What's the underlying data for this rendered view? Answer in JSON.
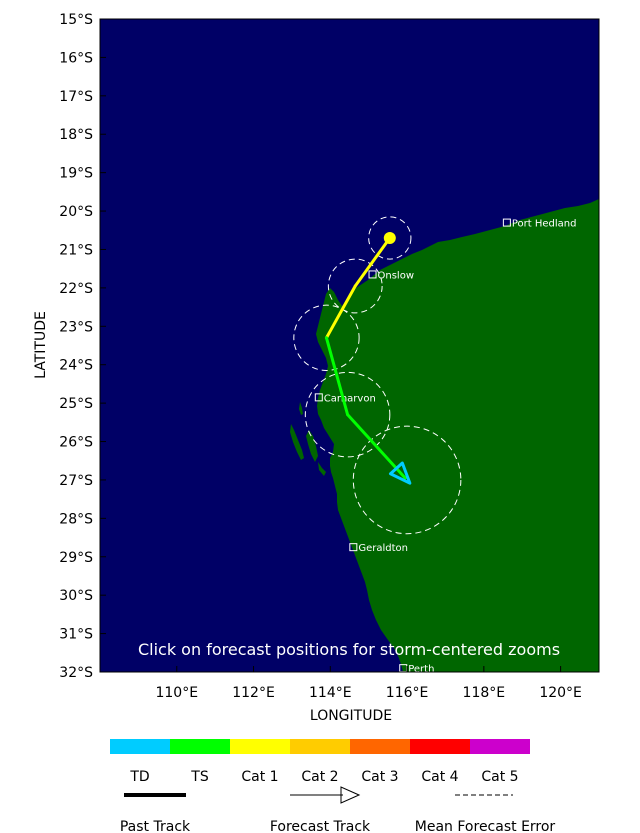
{
  "map": {
    "xlabel": "LONGITUDE",
    "ylabel": "LATITUDE",
    "lon_range": [
      108,
      121
    ],
    "lat_range": [
      -32,
      -15
    ],
    "lon_ticks": [
      {
        "value": 110,
        "label": "110°E"
      },
      {
        "value": 112,
        "label": "112°E"
      },
      {
        "value": 114,
        "label": "114°E"
      },
      {
        "value": 116,
        "label": "116°E"
      },
      {
        "value": 118,
        "label": "118°E"
      },
      {
        "value": 120,
        "label": "120°E"
      }
    ],
    "lat_ticks": [
      {
        "value": -15,
        "label": "15°S"
      },
      {
        "value": -16,
        "label": "16°S"
      },
      {
        "value": -17,
        "label": "17°S"
      },
      {
        "value": -18,
        "label": "18°S"
      },
      {
        "value": -19,
        "label": "19°S"
      },
      {
        "value": -20,
        "label": "20°S"
      },
      {
        "value": -21,
        "label": "21°S"
      },
      {
        "value": -22,
        "label": "22°S"
      },
      {
        "value": -23,
        "label": "23°S"
      },
      {
        "value": -24,
        "label": "24°S"
      },
      {
        "value": -25,
        "label": "25°S"
      },
      {
        "value": -26,
        "label": "26°S"
      },
      {
        "value": -27,
        "label": "27°S"
      },
      {
        "value": -28,
        "label": "28°S"
      },
      {
        "value": -29,
        "label": "29°S"
      },
      {
        "value": -30,
        "label": "30°S"
      },
      {
        "value": -31,
        "label": "31°S"
      },
      {
        "value": -32,
        "label": "32°S"
      }
    ],
    "ocean_color": "#000066",
    "land_color": "#006600",
    "notice": "Click on forecast positions for storm-centered zooms",
    "cities": [
      {
        "name": "Port Hedland",
        "lon": 118.6,
        "lat": -20.3
      },
      {
        "name": "Onslow",
        "lon": 115.1,
        "lat": -21.65
      },
      {
        "name": "Carnarvon",
        "lon": 113.7,
        "lat": -24.85
      },
      {
        "name": "Geraldton",
        "lon": 114.6,
        "lat": -28.75
      },
      {
        "name": "Perth",
        "lon": 115.9,
        "lat": -31.9
      }
    ]
  },
  "track": {
    "current_position": {
      "lon": 115.55,
      "lat": -20.7
    },
    "segments": [
      {
        "from": [
          115.55,
          -20.7
        ],
        "to": [
          114.65,
          -21.95
        ],
        "category": "Cat 1",
        "color": "#ffff00"
      },
      {
        "from": [
          114.65,
          -21.95
        ],
        "to": [
          113.9,
          -23.3
        ],
        "category": "Cat 1",
        "color": "#ffff00"
      },
      {
        "from": [
          113.9,
          -23.3
        ],
        "to": [
          114.45,
          -25.3
        ],
        "category": "TS",
        "color": "#00ff00"
      },
      {
        "from": [
          114.45,
          -25.3
        ],
        "to": [
          115.95,
          -26.95
        ],
        "category": "TS",
        "color": "#00ff00"
      }
    ],
    "forecast_points": [
      {
        "lon": 115.55,
        "lat": -20.7,
        "error_radius_deg": 0.55
      },
      {
        "lon": 114.65,
        "lat": -21.95,
        "error_radius_deg": 0.7
      },
      {
        "lon": 113.9,
        "lat": -23.3,
        "error_radius_deg": 0.85
      },
      {
        "lon": 114.45,
        "lat": -25.3,
        "error_radius_deg": 1.1
      },
      {
        "lon": 116.0,
        "lat": -27.0,
        "error_radius_deg": 1.4
      }
    ],
    "arrow_color": "#00ccff"
  },
  "legend": {
    "categories": [
      {
        "label": "TD",
        "color": "#00ccff"
      },
      {
        "label": "TS",
        "color": "#00ff00"
      },
      {
        "label": "Cat 1",
        "color": "#ffff00"
      },
      {
        "label": "Cat 2",
        "color": "#ffcc00"
      },
      {
        "label": "Cat 3",
        "color": "#ff6600"
      },
      {
        "label": "Cat 4",
        "color": "#ff0000"
      },
      {
        "label": "Cat 5",
        "color": "#cc00cc"
      }
    ],
    "past_track_label": "Past Track",
    "forecast_track_label": "Forecast Track",
    "error_label": "Mean Forecast Error"
  }
}
